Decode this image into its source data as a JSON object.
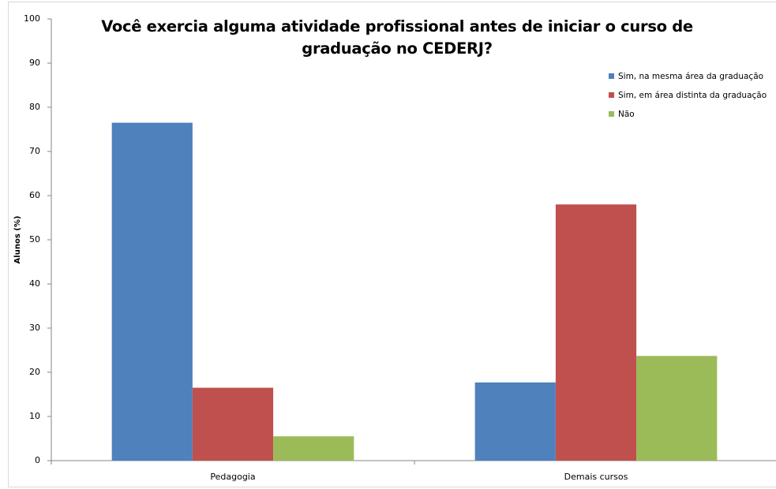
{
  "chart_data": {
    "type": "bar",
    "title": "Você exercia alguma atividade profissional antes de iniciar o curso de graduação no CEDERJ?",
    "ylabel": "Alunos (%)",
    "categories": [
      "Pedagogia",
      "Demais cursos"
    ],
    "series": [
      {
        "name": "Sim, na mesma área da graduação",
        "color": "#4f81bd",
        "values": [
          76.5,
          17.7
        ]
      },
      {
        "name": "Sim, em área distinta da graduação",
        "color": "#c0504d",
        "values": [
          16.5,
          58
        ]
      },
      {
        "name": "Não",
        "color": "#9bbb59",
        "values": [
          5.5,
          23.7
        ]
      }
    ],
    "ylim": [
      0,
      100
    ],
    "yticks": [
      0,
      10,
      20,
      30,
      40,
      50,
      60,
      70,
      80,
      90,
      100
    ],
    "grid": false,
    "legend": "upper right"
  }
}
